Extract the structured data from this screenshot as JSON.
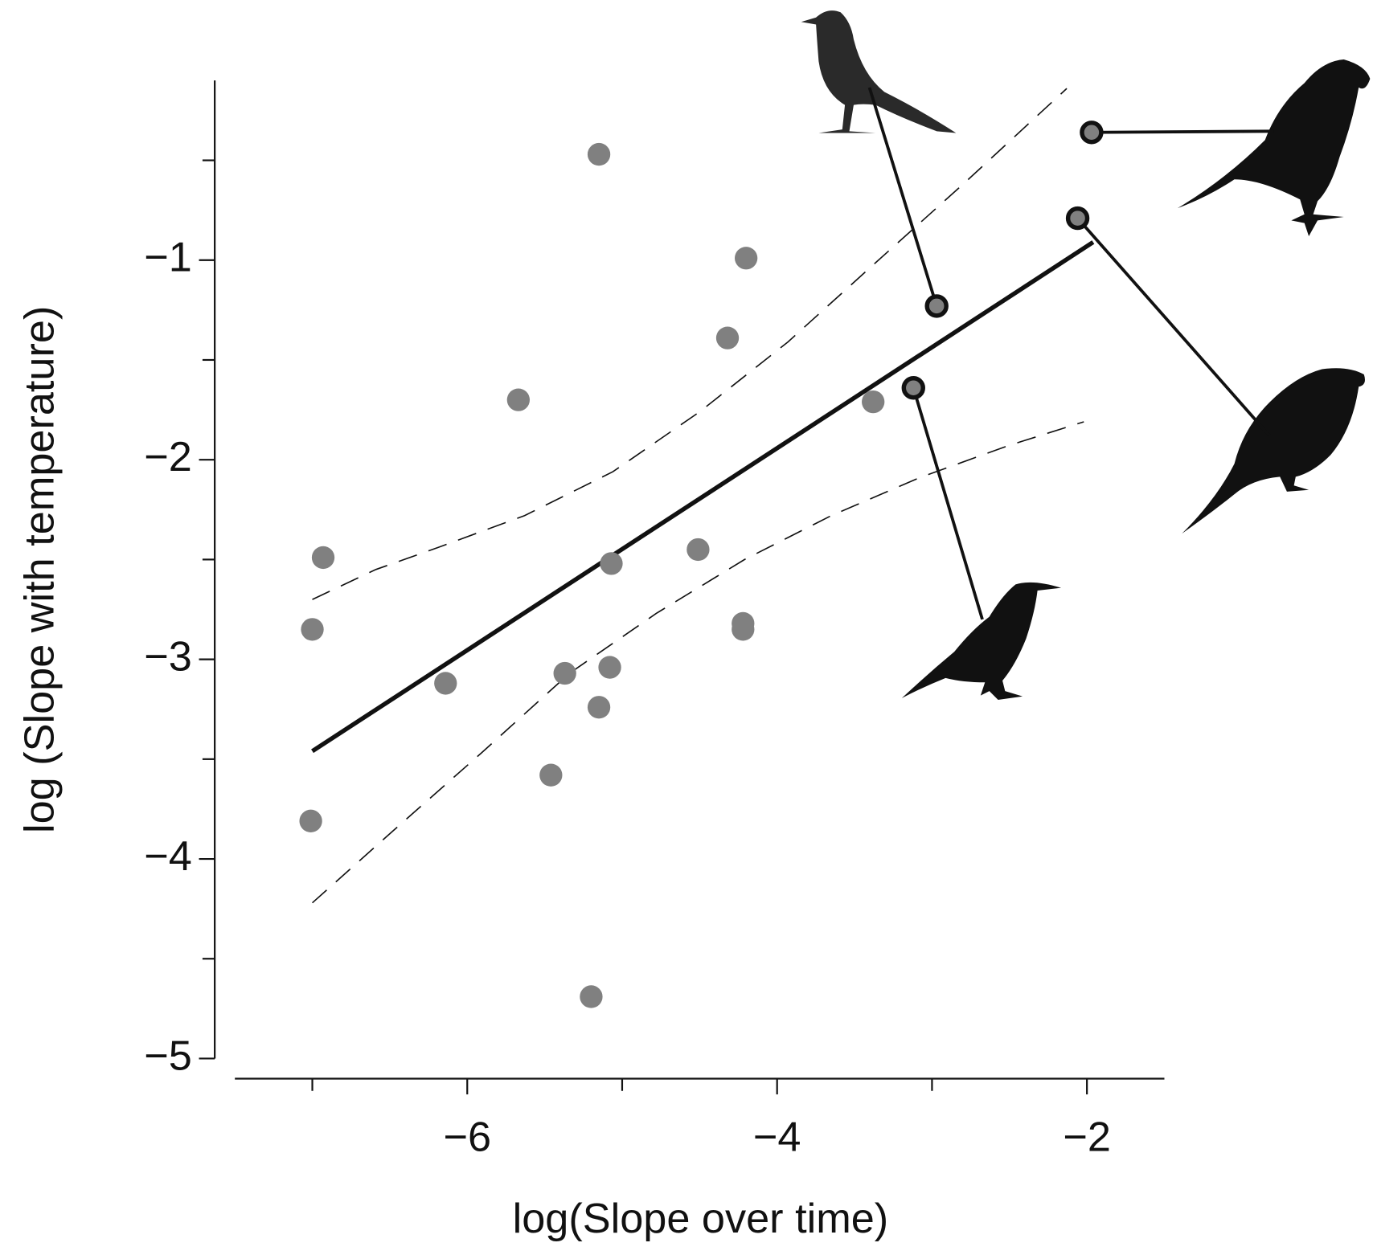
{
  "chart_data": {
    "type": "scatter",
    "x_label": "log(Slope over time)",
    "y_label": "log (Slope with temperature)",
    "xlim": [
      -7.5,
      -1.5
    ],
    "ylim": [
      -5,
      -0.1
    ],
    "xticks": [
      {
        "value": -6,
        "label": "−6"
      },
      {
        "value": -4,
        "label": "−4"
      },
      {
        "value": -2,
        "label": "−2"
      }
    ],
    "xminorticks": [
      -7,
      -5,
      -3
    ],
    "yticks": [
      {
        "value": -5,
        "label": "−5"
      },
      {
        "value": -4,
        "label": "−4"
      },
      {
        "value": -3,
        "label": "−3"
      },
      {
        "value": -2,
        "label": "−2"
      },
      {
        "value": -1,
        "label": "−1"
      }
    ],
    "yminorticks": [
      -4.5,
      -3.5,
      -2.5,
      -1.5,
      -0.5
    ],
    "series": [
      {
        "color": "#808080",
        "x": [
          -5.15,
          -4.2,
          -4.32,
          -5.67,
          -3.38,
          -6.93,
          -7.0,
          -5.07,
          -4.51,
          -4.22,
          -4.22,
          -6.14,
          -5.37,
          -5.08,
          -5.15,
          -5.46,
          -7.01,
          -5.2
        ],
        "y": [
          -0.47,
          -0.99,
          -1.39,
          -1.7,
          -1.71,
          -2.49,
          -2.85,
          -2.52,
          -2.45,
          -2.82,
          -2.85,
          -3.12,
          -3.07,
          -3.04,
          -3.24,
          -3.58,
          -3.81,
          -4.69
        ]
      },
      {
        "color": "#808080",
        "outline": "#111111",
        "x": [
          -2.97,
          -3.12,
          -2.06,
          -1.97
        ],
        "y": [
          -1.23,
          -1.64,
          -0.79,
          -0.36
        ]
      }
    ],
    "fit": {
      "color": "#111111",
      "x": [
        -7.0,
        -1.96
      ],
      "y": [
        -3.46,
        -0.91
      ]
    },
    "ci_upper": {
      "color": "#111111",
      "x": [
        -7.0,
        -6.59,
        -6.19,
        -5.63,
        -5.06,
        -4.5,
        -3.93,
        -3.36,
        -2.8,
        -2.13
      ],
      "y": [
        -2.7,
        -2.55,
        -2.44,
        -2.28,
        -2.06,
        -1.76,
        -1.41,
        -1.01,
        -0.62,
        -0.14
      ]
    },
    "ci_lower": {
      "color": "#111111",
      "x": [
        -7.0,
        -6.48,
        -5.91,
        -5.34,
        -4.78,
        -4.21,
        -3.65,
        -3.08,
        -2.51,
        -2.02
      ],
      "y": [
        -4.22,
        -3.86,
        -3.47,
        -3.07,
        -2.77,
        -2.5,
        -2.28,
        -2.09,
        -1.93,
        -1.81
      ]
    }
  }
}
